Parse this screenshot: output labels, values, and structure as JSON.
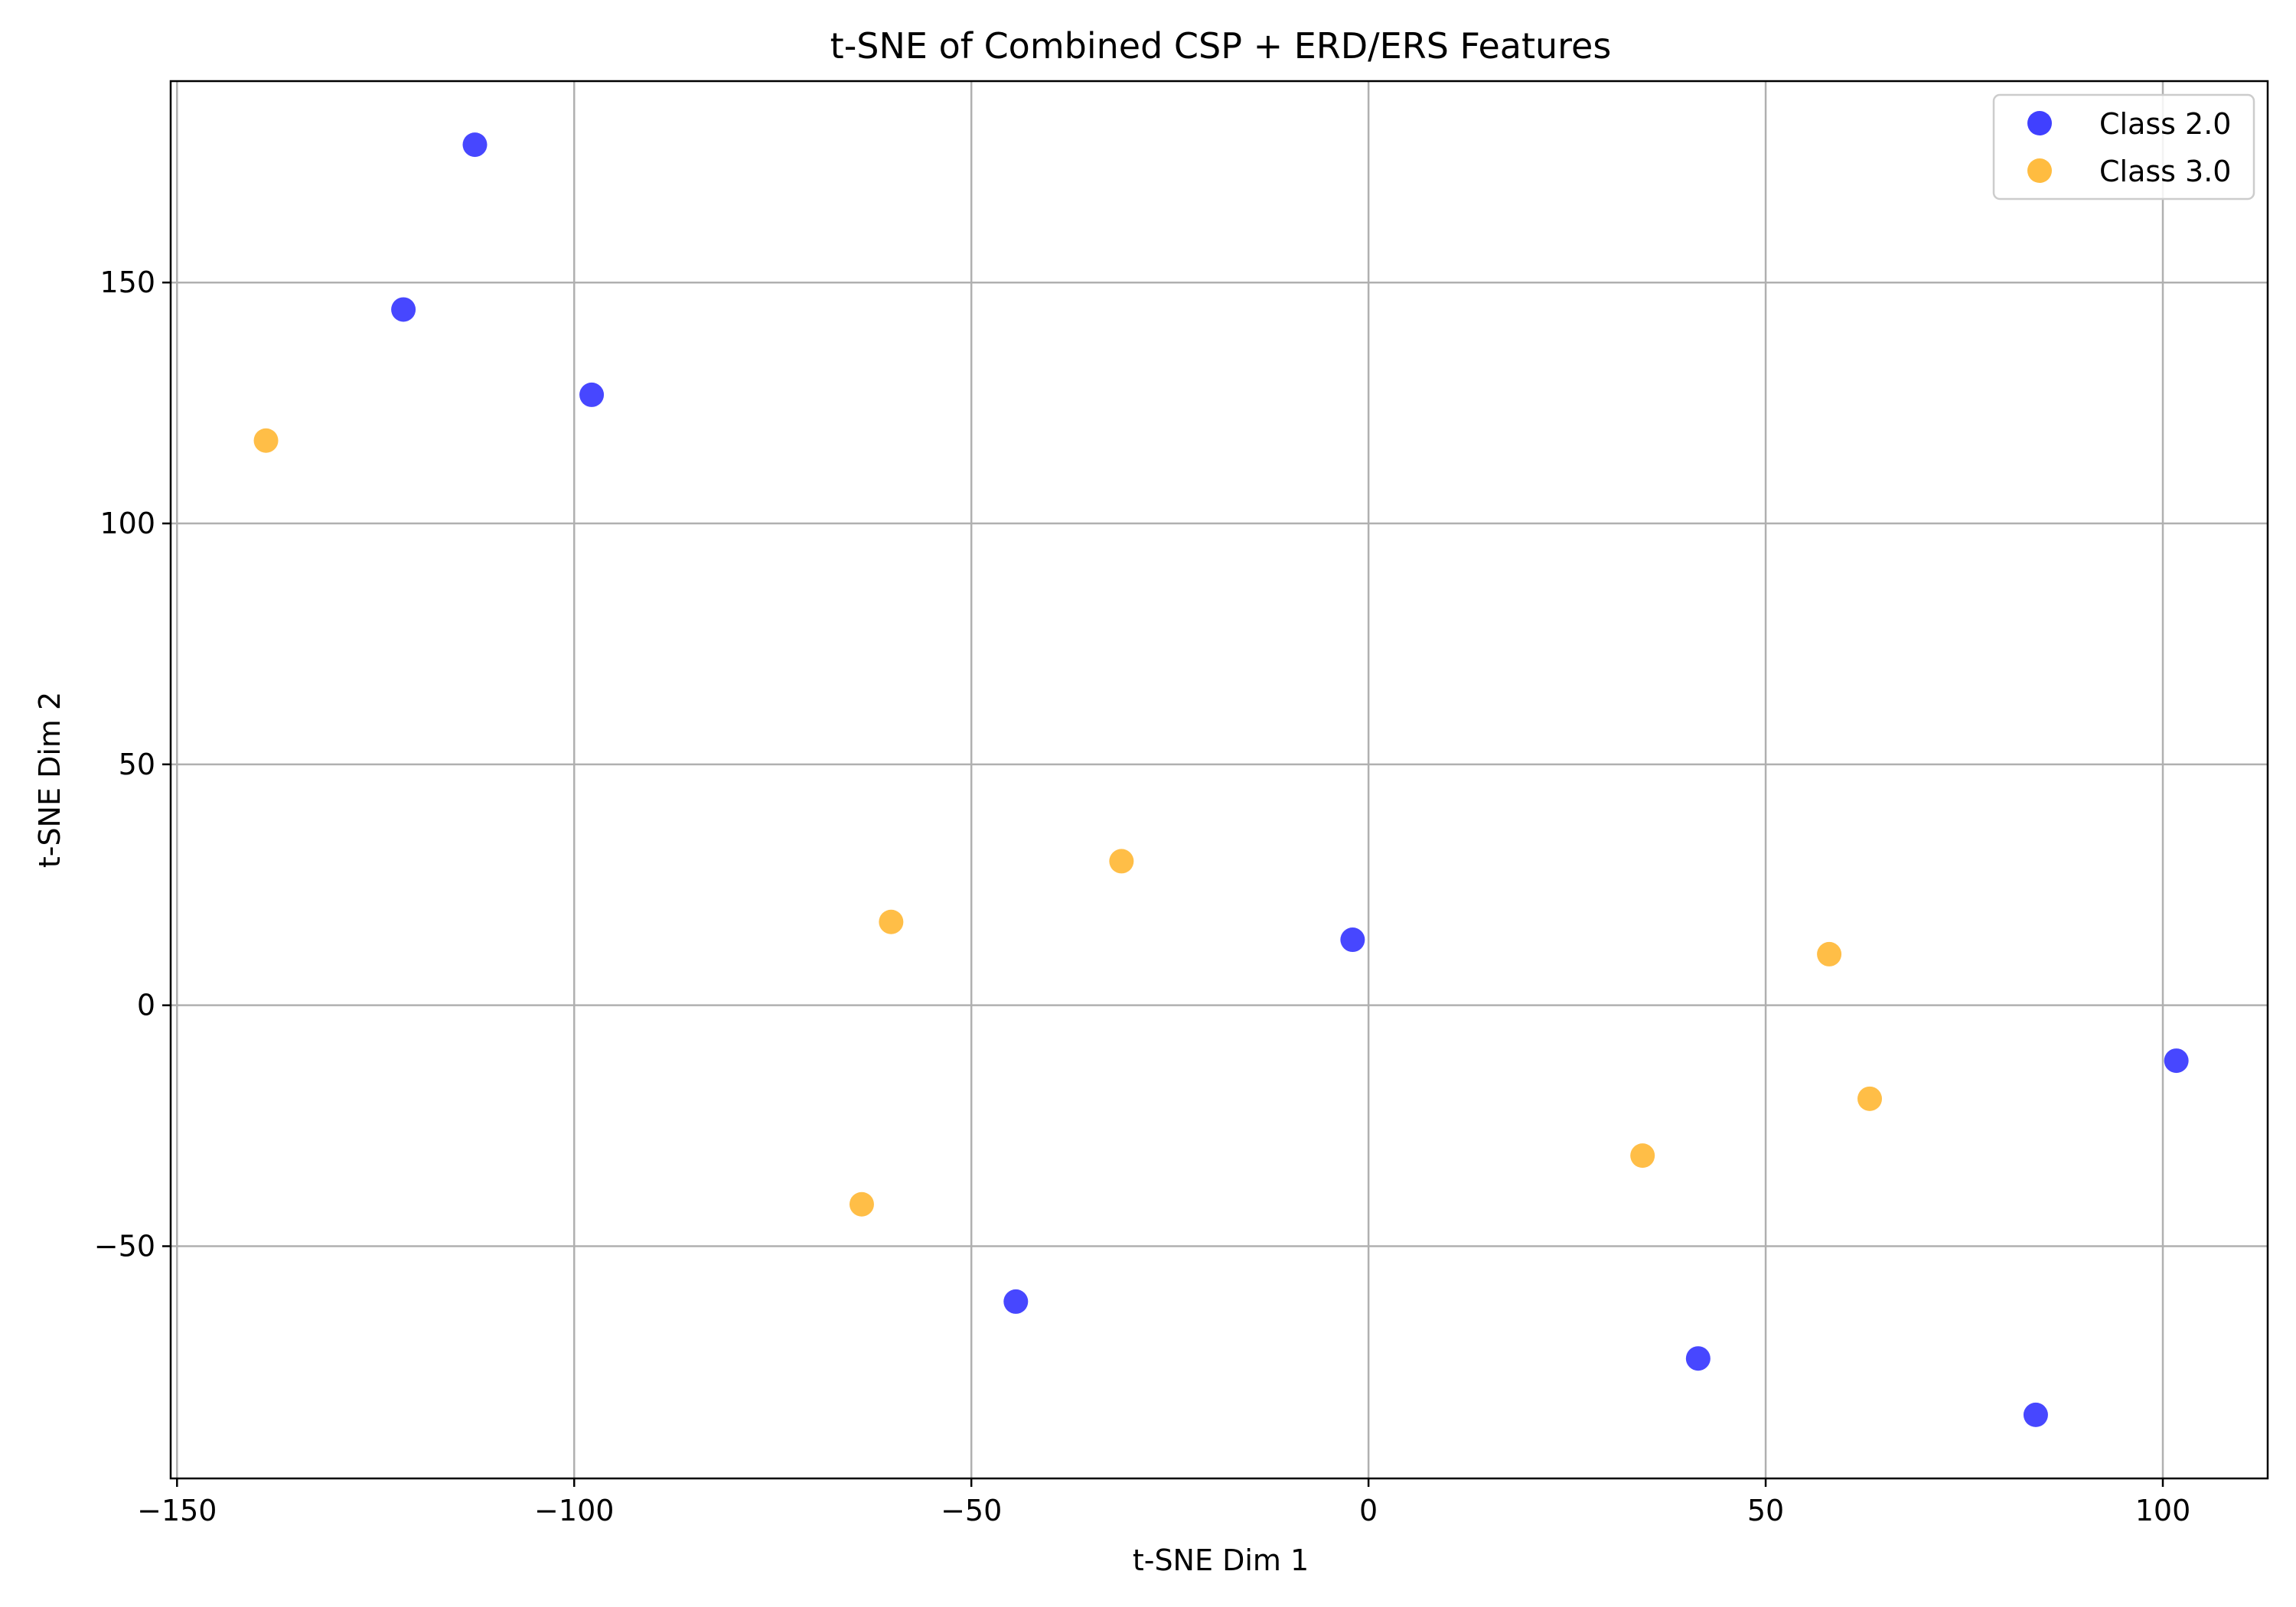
{
  "chart_data": {
    "type": "scatter",
    "title": "t-SNE of Combined CSP + ERD/ERS Features",
    "xlabel": "t-SNE Dim 1",
    "ylabel": "t-SNE Dim 2",
    "xlim": [
      -150.8,
      113.2
    ],
    "ylim": [
      -98.2,
      191.8
    ],
    "xticks": [
      -150,
      -100,
      -50,
      0,
      50,
      100
    ],
    "yticks": [
      -50,
      0,
      50,
      100,
      150
    ],
    "grid": true,
    "legend": "top-right",
    "series": [
      {
        "name": "Class 2.0",
        "color": "#0000ff",
        "points": [
          {
            "x": -112.5,
            "y": 178.6
          },
          {
            "x": -121.5,
            "y": 144.4
          },
          {
            "x": -97.8,
            "y": 126.7
          },
          {
            "x": -2.0,
            "y": 13.6
          },
          {
            "x": -44.4,
            "y": -61.5
          },
          {
            "x": 41.5,
            "y": -73.3
          },
          {
            "x": 84.0,
            "y": -85.0
          },
          {
            "x": 101.7,
            "y": -11.5
          }
        ]
      },
      {
        "name": "Class 3.0",
        "color": "#ffa500",
        "points": [
          {
            "x": -138.8,
            "y": 117.2
          },
          {
            "x": -60.1,
            "y": 17.3
          },
          {
            "x": -31.1,
            "y": 29.9
          },
          {
            "x": -63.8,
            "y": -41.3
          },
          {
            "x": 34.5,
            "y": -31.2
          },
          {
            "x": 58.0,
            "y": 10.6
          },
          {
            "x": 63.1,
            "y": -19.4
          }
        ]
      }
    ]
  }
}
